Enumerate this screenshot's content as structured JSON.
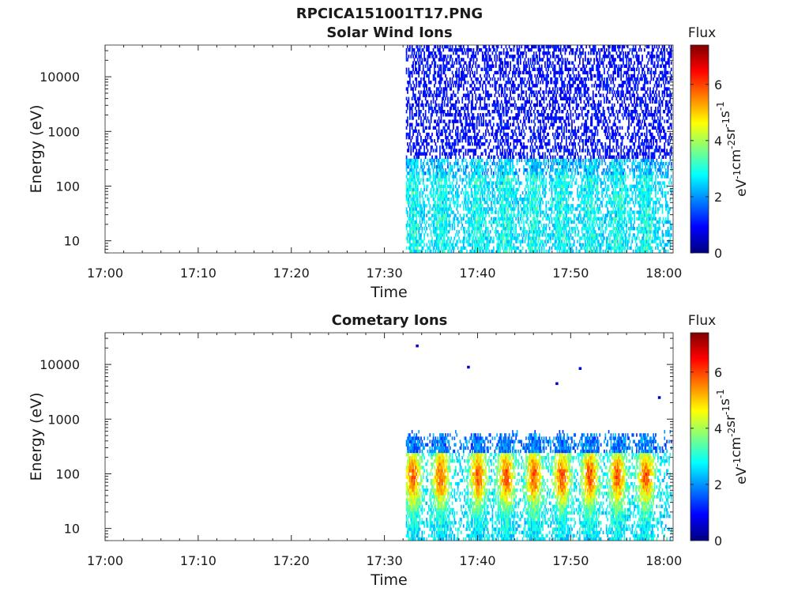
{
  "figure": {
    "title": "RPCICA151001T17.PNG"
  },
  "chart_data": [
    {
      "type": "heatmap",
      "title": "Solar Wind Ions",
      "xlabel": "Time",
      "ylabel": "Energy (eV)",
      "x_ticks": [
        "17:00",
        "17:10",
        "17:20",
        "17:30",
        "17:40",
        "17:50",
        "18:00"
      ],
      "xlim": [
        "17:00",
        "18:01"
      ],
      "y_scale": "log",
      "y_ticks": [
        "10",
        "100",
        "1000",
        "10000"
      ],
      "ylim": [
        6,
        38000
      ],
      "data_start": "17:32",
      "colorbar": {
        "title": "Flux",
        "label": "eV-1cm-2sr-1s-1",
        "range": [
          0,
          7.4
        ],
        "ticks": [
          "0",
          "2",
          "4",
          "6"
        ],
        "colormap": "jet"
      },
      "description_values": {
        "high_energy_band_eV": [
          300,
          38000
        ],
        "high_energy_flux": 0.7,
        "low_energy_band_eV": [
          6,
          400
        ],
        "low_energy_flux": 3.1,
        "burst_times": [
          "17:33",
          "17:36",
          "17:40",
          "17:43",
          "17:46",
          "17:49",
          "17:52",
          "17:55",
          "17:58"
        ],
        "burst_peak_flux": 3.6
      }
    },
    {
      "type": "heatmap",
      "title": "Cometary Ions",
      "xlabel": "Time",
      "ylabel": "Energy (eV)",
      "x_ticks": [
        "17:00",
        "17:10",
        "17:20",
        "17:30",
        "17:40",
        "17:50",
        "18:00"
      ],
      "xlim": [
        "17:00",
        "18:01"
      ],
      "y_scale": "log",
      "y_ticks": [
        "10",
        "100",
        "1000",
        "10000"
      ],
      "ylim": [
        6,
        38000
      ],
      "data_start": "17:32",
      "colorbar": {
        "title": "Flux",
        "label": "eV-1cm-2sr-1s-1",
        "range": [
          0,
          7.4
        ],
        "ticks": [
          "0",
          "2",
          "4",
          "6"
        ],
        "colormap": "jet"
      },
      "description_values": {
        "burst_times": [
          "17:33",
          "17:36",
          "17:40",
          "17:43",
          "17:46",
          "17:49",
          "17:52",
          "17:55",
          "17:58"
        ],
        "burst_energy_range_eV": [
          6,
          600
        ],
        "burst_peak_energy_eV": 90,
        "burst_peak_flux": 5.6,
        "sparse_high_energy_points": [
          {
            "time": "17:33.5",
            "energy": 22000
          },
          {
            "time": "17:39",
            "energy": 9000
          },
          {
            "time": "17:51",
            "energy": 8500
          },
          {
            "time": "17:48.5",
            "energy": 4500
          },
          {
            "time": "17:59.5",
            "energy": 2500
          }
        ]
      }
    }
  ]
}
